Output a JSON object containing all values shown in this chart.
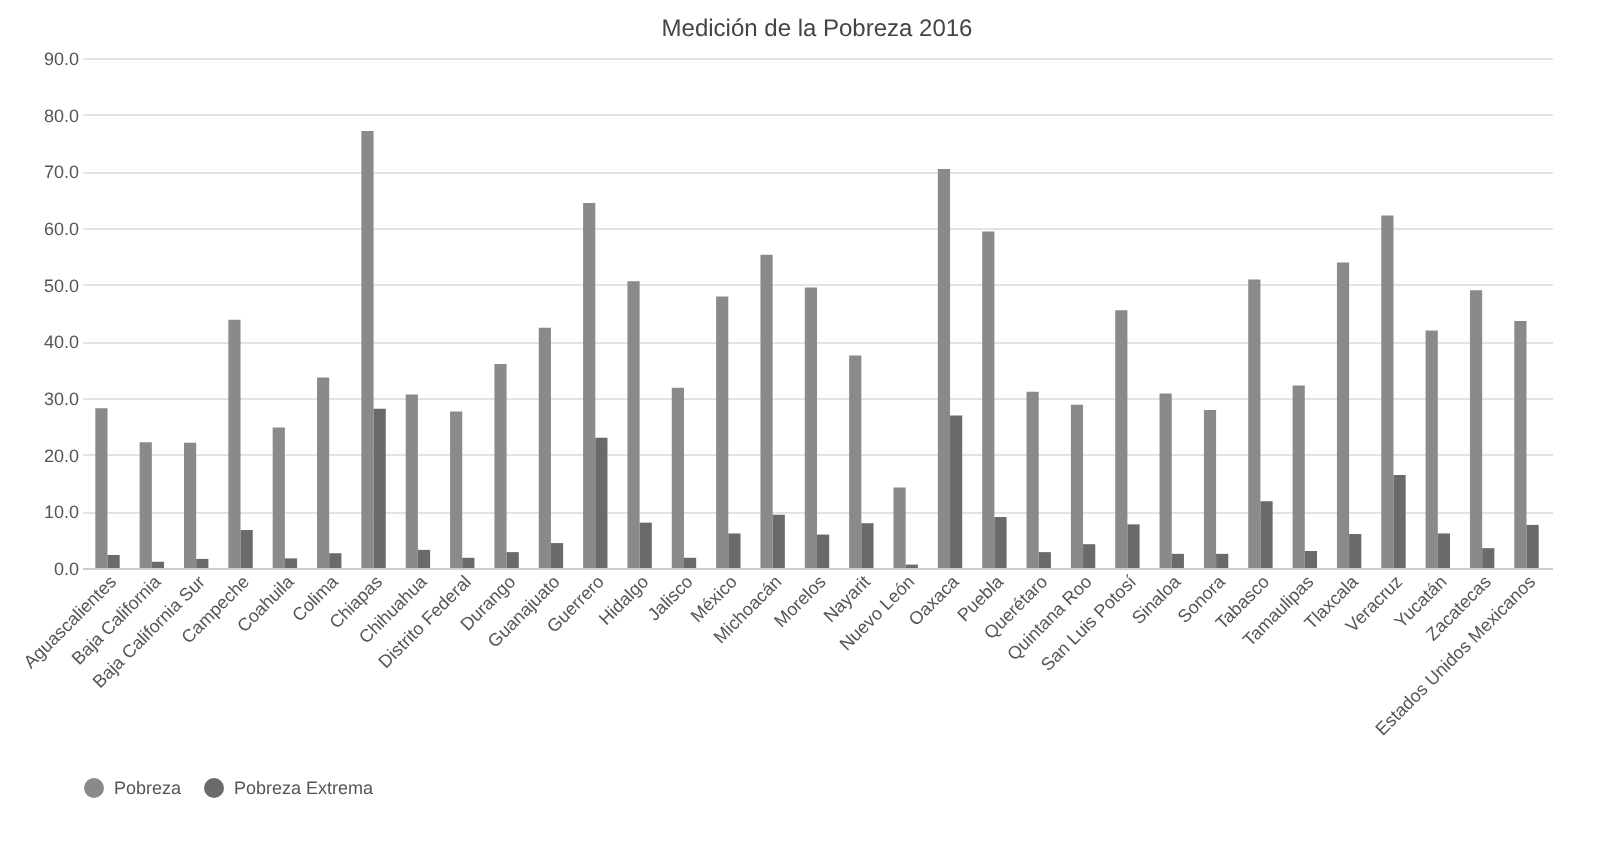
{
  "chart_data": {
    "type": "bar",
    "title": "Medición de la Pobreza 2016",
    "categories": [
      "Aguascalientes",
      "Baja California",
      "Baja California Sur",
      "Campeche",
      "Coahuila",
      "Colima",
      "Chiapas",
      "Chihuahua",
      "Distrito Federal",
      "Durango",
      "Guanajuato",
      "Guerrero",
      "Hidalgo",
      "Jalisco",
      "México",
      "Michoacán",
      "Morelos",
      "Nayarit",
      "Nuevo León",
      "Oaxaca",
      "Puebla",
      "Querétaro",
      "Quintana Roo",
      "San Luis Potosí",
      "Sinaloa",
      "Sonora",
      "Tabasco",
      "Tamaulipas",
      "Tlaxcala",
      "Veracruz",
      "Yucatán",
      "Zacatecas",
      "Estados Unidos Mexicanos"
    ],
    "series": [
      {
        "name": "Pobreza",
        "color": "#8a8a8a",
        "values": [
          28.2,
          22.2,
          22.1,
          43.8,
          24.8,
          33.6,
          77.1,
          30.6,
          27.6,
          36.0,
          42.4,
          64.4,
          50.6,
          31.8,
          47.9,
          55.3,
          49.5,
          37.5,
          14.2,
          70.4,
          59.4,
          31.1,
          28.8,
          45.5,
          30.8,
          27.9,
          50.9,
          32.2,
          53.9,
          62.2,
          41.9,
          49.0,
          43.6
        ]
      },
      {
        "name": "Pobreza Extrema",
        "color": "#6a6a6a",
        "values": [
          2.3,
          1.1,
          1.6,
          6.7,
          1.7,
          2.6,
          28.1,
          3.2,
          1.8,
          2.8,
          4.4,
          23.0,
          8.0,
          1.8,
          6.1,
          9.4,
          5.9,
          7.9,
          0.6,
          26.9,
          9.0,
          2.8,
          4.2,
          7.7,
          2.5,
          2.5,
          11.8,
          3.0,
          6.0,
          16.4,
          6.1,
          3.5,
          7.6
        ]
      }
    ],
    "ylim": [
      0,
      90
    ],
    "yticks": [
      {
        "value": 0,
        "label": "0.0"
      },
      {
        "value": 10,
        "label": "10.0"
      },
      {
        "value": 20,
        "label": "20.0"
      },
      {
        "value": 30,
        "label": "30.0"
      },
      {
        "value": 40,
        "label": "40.0"
      },
      {
        "value": 50,
        "label": "50.0"
      },
      {
        "value": 60,
        "label": "60.0"
      },
      {
        "value": 70,
        "label": "70.0"
      },
      {
        "value": 80,
        "label": "80.0"
      },
      {
        "value": 90,
        "label": "90.0"
      }
    ],
    "grid": "y",
    "legend": "bottom"
  }
}
